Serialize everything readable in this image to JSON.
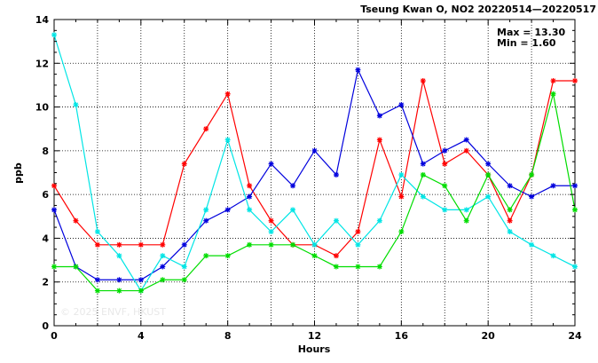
{
  "chart_data": {
    "type": "line",
    "title": "Tseung Kwan O, NO2 20220514—20220517",
    "xlabel": "Hours",
    "ylabel": "ppb",
    "xlim": [
      0,
      24
    ],
    "ylim": [
      0,
      14
    ],
    "x_ticks": [
      0,
      4,
      8,
      12,
      16,
      20,
      24
    ],
    "y_ticks": [
      0,
      2,
      4,
      6,
      8,
      10,
      12,
      14
    ],
    "grid": true,
    "stats": {
      "max_label": "Max = 13.30",
      "min_label": "Min =  1.60"
    },
    "watermark": "© 2025  ENVF, HKUST",
    "x": [
      0,
      1,
      2,
      3,
      4,
      5,
      6,
      7,
      8,
      9,
      10,
      11,
      12,
      13,
      14,
      15,
      16,
      17,
      18,
      19,
      20,
      21,
      22,
      23,
      24
    ],
    "series": [
      {
        "color": "#ff0000",
        "values": [
          6.4,
          4.8,
          3.7,
          3.7,
          3.7,
          3.7,
          7.4,
          9.0,
          10.6,
          6.4,
          4.8,
          3.7,
          3.7,
          3.2,
          4.3,
          8.5,
          5.9,
          11.2,
          7.4,
          8.0,
          6.9,
          4.8,
          6.9,
          11.2,
          11.2
        ]
      },
      {
        "color": "#0000dd",
        "values": [
          5.3,
          2.7,
          2.1,
          2.1,
          2.1,
          2.7,
          3.7,
          4.8,
          5.3,
          5.9,
          7.4,
          6.4,
          8.0,
          6.9,
          11.7,
          9.6,
          10.1,
          7.4,
          8.0,
          8.5,
          7.4,
          6.4,
          5.9,
          6.4,
          6.4
        ]
      },
      {
        "color": "#00e5e5",
        "values": [
          13.3,
          10.1,
          4.3,
          3.2,
          1.6,
          3.2,
          2.7,
          5.3,
          8.5,
          5.3,
          4.3,
          5.3,
          3.7,
          4.8,
          3.7,
          4.8,
          6.9,
          5.9,
          5.3,
          5.3,
          5.9,
          4.3,
          3.7,
          3.2,
          2.7
        ]
      },
      {
        "color": "#00dd00",
        "values": [
          2.7,
          2.7,
          1.6,
          1.6,
          1.6,
          2.1,
          2.1,
          3.2,
          3.2,
          3.7,
          3.7,
          3.7,
          3.2,
          2.7,
          2.7,
          2.7,
          4.3,
          6.9,
          6.4,
          4.8,
          6.9,
          5.3,
          6.9,
          10.6,
          5.3
        ]
      }
    ]
  }
}
